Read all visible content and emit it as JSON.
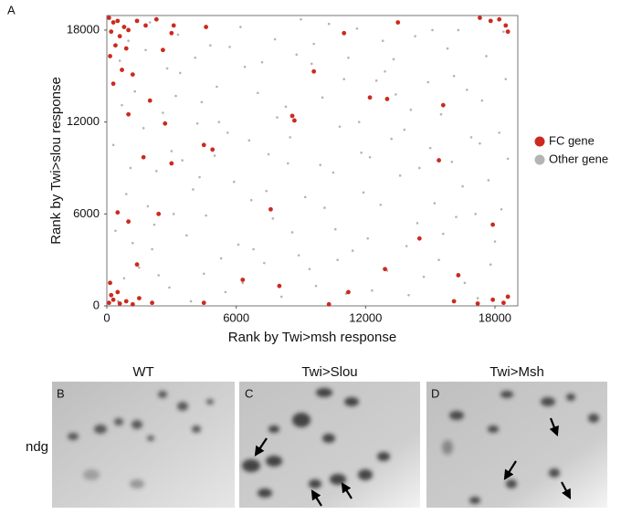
{
  "chart_data": {
    "type": "scatter",
    "panel_label": "A",
    "x_label": "Rank by Twi>msh response",
    "y_label": "Rank by Twi>slou response",
    "xlim": [
      0,
      19060
    ],
    "ylim": [
      0,
      18950
    ],
    "xticks": [
      0,
      6000,
      12000,
      18000
    ],
    "yticks": [
      0,
      6000,
      12000,
      18000
    ],
    "legend": "right",
    "series": [
      {
        "name": "Other gene",
        "color": "#b4b4b4",
        "x": [
          520,
          1200,
          2300,
          3400,
          4500,
          5600,
          6700,
          7800,
          8900,
          10000,
          11100,
          12200,
          13300,
          14400,
          15500,
          16600,
          17700,
          18400,
          300,
          1800,
          2900,
          4000,
          5100,
          6200,
          7300,
          8400,
          9500,
          10600,
          11700,
          12800,
          13900,
          15000,
          16100,
          17200,
          18300,
          700,
          1500,
          2600,
          3700,
          4800,
          5900,
          7000,
          8100,
          9200,
          10300,
          11400,
          12500,
          13600,
          14700,
          15800,
          16900,
          18000,
          900,
          2000,
          3100,
          4200,
          5300,
          6400,
          7500,
          8600,
          9700,
          10800,
          11900,
          13000,
          14100,
          15200,
          16300,
          17400,
          18600,
          1100,
          2200,
          3300,
          4400,
          5500,
          6600,
          7700,
          8800,
          9900,
          11000,
          12100,
          13200,
          14300,
          15400,
          16500,
          17600,
          400,
          1300,
          2400,
          3500,
          4600,
          5700,
          6800,
          7900,
          9000,
          10100,
          11200,
          12300,
          13400,
          14500,
          15600,
          16700,
          17800,
          600,
          1700,
          2800,
          3900,
          5000,
          6100,
          7200,
          8300,
          9400,
          10500,
          11600,
          12700,
          13800,
          14900,
          16000,
          17100,
          18200,
          800,
          1900,
          3000,
          4100,
          5200,
          6300,
          7400,
          8500,
          9600,
          10700,
          11800,
          12900,
          14000,
          15100,
          16200,
          17300,
          18500,
          1000,
          2100,
          3200,
          4300
        ],
        "values": [
          300,
          4100,
          8800,
          15200,
          2100,
          11300,
          6900,
          17400,
          3300,
          13600,
          800,
          9700,
          16100,
          5400,
          12500,
          1500,
          8200,
          17900,
          10500,
          16700,
          1200,
          7600,
          14300,
          18200,
          2800,
          9300,
          15800,
          5000,
          12000,
          17300,
          3900,
          10300,
          15000,
          500,
          6300,
          13100,
          2500,
          12600,
          4600,
          17000,
          8100,
          13900,
          600,
          7100,
          18400,
          3600,
          14700,
          8500,
          1900,
          16800,
          11000,
          4200,
          7300,
          18500,
          6000,
          11900,
          3100,
          15600,
          9900,
          4800,
          1300,
          11700,
          7400,
          2300,
          12800,
          6700,
          18000,
          13400,
          9600,
          9000,
          5300,
          17700,
          13300,
          900,
          10800,
          5700,
          16400,
          9200,
          14800,
          4400,
          10900,
          17600,
          3000,
          7800,
          16300,
          4900,
          14000,
          2000,
          9500,
          5900,
          16900,
          3700,
          12300,
          18700,
          6400,
          16200,
          1000,
          13800,
          9000,
          4700,
          14100,
          2700,
          16000,
          11600,
          15500,
          300,
          9800,
          4000,
          15900,
          13000,
          2400,
          8700,
          18100,
          6600,
          11500,
          14600,
          9400,
          6000,
          11300,
          1800,
          6500,
          10100,
          16200,
          12000,
          1500,
          7500,
          11000,
          17100,
          3000,
          10000,
          15300,
          700,
          18000,
          5800,
          10600,
          14800,
          17300,
          3700,
          13700,
          8400
        ]
      },
      {
        "name": "FC gene",
        "color": "#cc2a1f",
        "x": [
          100,
          300,
          500,
          800,
          200,
          600,
          1000,
          1400,
          1800,
          2300,
          400,
          900,
          150,
          700,
          1200,
          300,
          2600,
          3000,
          4600,
          2000,
          100,
          300,
          600,
          900,
          200,
          1200,
          500,
          1500,
          150,
          2100,
          18200,
          18500,
          17800,
          18600,
          17300,
          18400,
          17900,
          18600,
          17200,
          16100,
          2700,
          4900,
          4500,
          8600,
          8700,
          11000,
          12200,
          13000,
          15400,
          7600,
          15600,
          16300,
          14500,
          17900,
          12900,
          10300,
          8000,
          4500,
          6300,
          3000,
          1700,
          1000,
          500,
          2400,
          1400,
          13500,
          9600,
          1000,
          3100,
          11200
        ],
        "values": [
          18800,
          18500,
          18600,
          18200,
          17900,
          17600,
          18000,
          18600,
          18300,
          18700,
          17000,
          16800,
          16300,
          15400,
          15100,
          14500,
          16700,
          17800,
          18200,
          13400,
          200,
          400,
          150,
          300,
          700,
          100,
          900,
          500,
          1500,
          200,
          18700,
          18300,
          18600,
          17900,
          18800,
          200,
          400,
          600,
          150,
          300,
          11900,
          10200,
          10500,
          12400,
          12100,
          17800,
          13600,
          13500,
          9500,
          6300,
          13100,
          2000,
          4400,
          5300,
          2400,
          100,
          1300,
          200,
          1700,
          9300,
          9700,
          5500,
          6100,
          6000,
          2700,
          18500,
          15300,
          12500,
          18300,
          900
        ]
      }
    ]
  },
  "figure": {
    "row_label": "ndg",
    "panels": [
      {
        "label": "B",
        "title": "WT"
      },
      {
        "label": "C",
        "title": "Twi>Slou"
      },
      {
        "label": "D",
        "title": "Twi>Msh"
      }
    ]
  }
}
